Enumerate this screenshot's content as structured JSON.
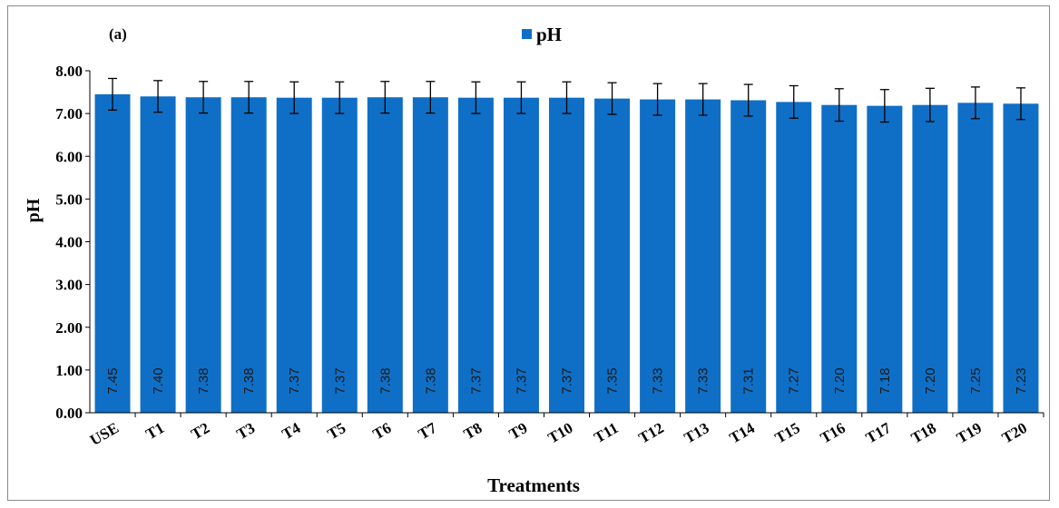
{
  "chart_data": {
    "type": "bar",
    "panel_label": "(a)",
    "xlabel": "Treatments",
    "ylabel": "pH",
    "ylim": [
      0,
      8
    ],
    "yticks": [
      "0.00",
      "1.00",
      "2.00",
      "3.00",
      "4.00",
      "5.00",
      "6.00",
      "7.00",
      "8.00"
    ],
    "legend_position": "top-center",
    "grid": false,
    "categories": [
      "USE",
      "T1",
      "T2",
      "T3",
      "T4",
      "T5",
      "T6",
      "T7",
      "T8",
      "T9",
      "T10",
      "T11",
      "T12",
      "T13",
      "T14",
      "T15",
      "T16",
      "T17",
      "T18",
      "T19",
      "T20"
    ],
    "series": [
      {
        "name": "pH",
        "color": "#0f6fc6",
        "values": [
          7.45,
          7.4,
          7.38,
          7.38,
          7.37,
          7.37,
          7.38,
          7.38,
          7.37,
          7.37,
          7.37,
          7.35,
          7.33,
          7.33,
          7.31,
          7.27,
          7.2,
          7.18,
          7.2,
          7.25,
          7.23
        ],
        "data_labels": [
          "7.45",
          "7.40",
          "7.38",
          "7.38",
          "7.37",
          "7.37",
          "7.38",
          "7.38",
          "7.37",
          "7.37",
          "7.37",
          "7.35",
          "7.33",
          "7.33",
          "7.31",
          "7.27",
          "7.20",
          "7.18",
          "7.20",
          "7.25",
          "7.23"
        ],
        "error": [
          0.37,
          0.37,
          0.37,
          0.37,
          0.37,
          0.37,
          0.37,
          0.37,
          0.37,
          0.37,
          0.37,
          0.37,
          0.37,
          0.37,
          0.37,
          0.38,
          0.38,
          0.38,
          0.39,
          0.37,
          0.37
        ]
      }
    ]
  }
}
